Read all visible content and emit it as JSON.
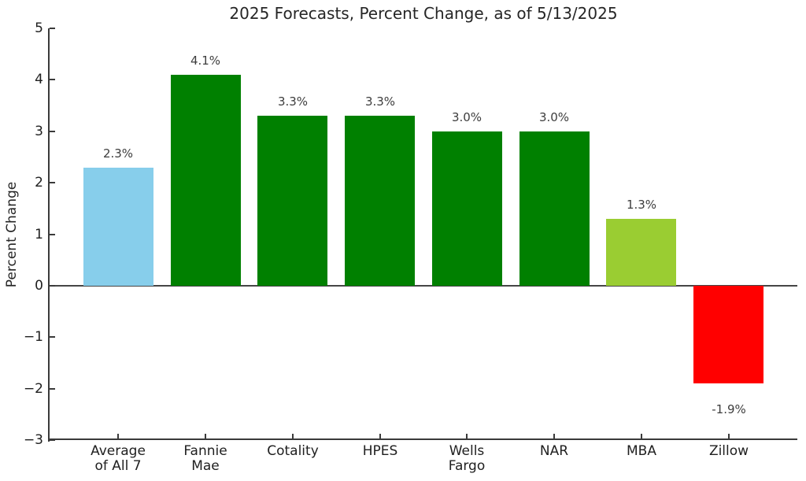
{
  "figure": {
    "background_color": "#ffffff",
    "text_color": "#262626",
    "axis_color": "#3a3a3a"
  },
  "chart_data": {
    "type": "bar",
    "title": "2025 Forecasts, Percent Change, as of 5/13/2025",
    "xlabel": "",
    "ylabel": "Percent Change",
    "categories": [
      "Average\nof All 7",
      "Fannie\nMae",
      "Cotality",
      "HPES",
      "Wells\nFargo",
      "NAR",
      "MBA",
      "Zillow"
    ],
    "values": [
      2.3,
      4.1,
      3.3,
      3.3,
      3.0,
      3.0,
      1.3,
      -1.9
    ],
    "bar_labels": [
      "2.3%",
      "4.1%",
      "3.3%",
      "3.3%",
      "3.0%",
      "3.0%",
      "1.3%",
      "-1.9%"
    ],
    "bar_colors": [
      "#87CEEB",
      "#008000",
      "#008000",
      "#008000",
      "#008000",
      "#008000",
      "#9ACD32",
      "#FF0000"
    ],
    "ylim": [
      -3,
      5
    ],
    "xlim": [
      -0.79,
      7.79
    ],
    "ytick_values": [
      5,
      4,
      3,
      2,
      1,
      0,
      -1,
      -2,
      -3
    ],
    "ytick_labels": [
      "5",
      "4",
      "3",
      "2",
      "1",
      "0",
      "−1",
      "−2",
      "−3"
    ],
    "bar_width_units": 0.8,
    "grid": false,
    "legend": null,
    "zero_line": true
  }
}
